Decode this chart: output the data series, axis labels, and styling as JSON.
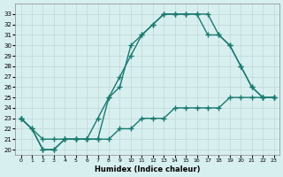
{
  "xlabel": "Humidex (Indice chaleur)",
  "bg_color": "#d8eff0",
  "grid_color": "#c0d8d8",
  "line_color": "#1a7a6e",
  "line1_x": [
    0,
    1,
    2,
    3,
    4,
    5,
    6,
    7,
    8,
    9,
    10,
    11,
    12,
    13,
    14,
    15,
    16,
    17,
    18,
    19,
    20,
    21,
    22,
    23
  ],
  "line1_y": [
    23,
    22,
    20,
    20,
    21,
    21,
    21,
    21,
    25,
    27,
    29,
    31,
    32,
    33,
    33,
    33,
    33,
    33,
    31,
    30,
    28,
    26,
    25,
    25
  ],
  "line2_x": [
    0,
    1,
    2,
    3,
    4,
    5,
    6,
    7,
    8,
    9,
    10,
    11,
    12,
    13,
    14,
    15,
    16,
    17,
    18,
    19,
    20,
    21,
    22,
    23
  ],
  "line2_y": [
    23,
    22,
    20,
    20,
    21,
    21,
    21,
    23,
    25,
    26,
    30,
    31,
    32,
    33,
    33,
    33,
    33,
    31,
    31,
    30,
    28,
    26,
    25,
    25
  ],
  "line3_x": [
    0,
    2,
    3,
    4,
    5,
    6,
    7,
    8,
    9,
    10,
    11,
    12,
    13,
    14,
    15,
    16,
    17,
    18,
    19,
    20,
    21,
    22,
    23
  ],
  "line3_y": [
    23,
    21,
    21,
    21,
    21,
    21,
    21,
    21,
    22,
    22,
    23,
    23,
    23,
    24,
    24,
    24,
    24,
    24,
    25,
    25,
    25,
    25,
    25
  ],
  "xlim": [
    -0.5,
    23.5
  ],
  "ylim": [
    19.5,
    34
  ],
  "yticks": [
    20,
    21,
    22,
    23,
    24,
    25,
    26,
    27,
    28,
    29,
    30,
    31,
    32,
    33
  ],
  "xticks": [
    0,
    1,
    2,
    3,
    4,
    5,
    6,
    7,
    8,
    9,
    10,
    11,
    12,
    13,
    14,
    15,
    16,
    17,
    18,
    19,
    20,
    21,
    22,
    23
  ]
}
